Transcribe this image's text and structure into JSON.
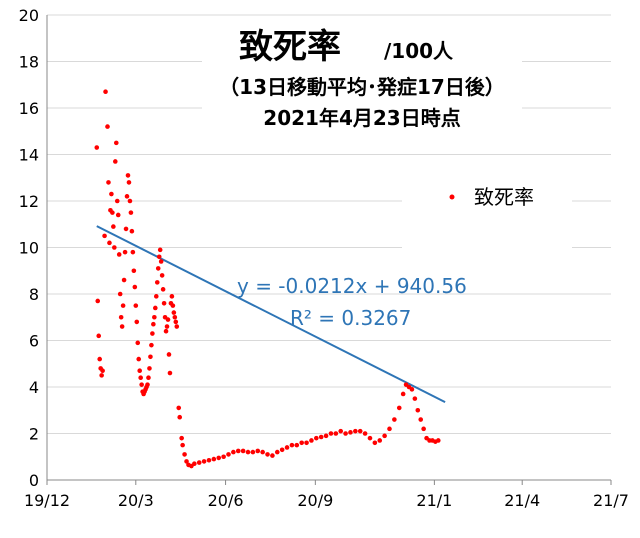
{
  "chart_data": {
    "type": "scatter",
    "title_main": "致死率",
    "title_unit": "/100人",
    "subtitle_1": "（13日移動平均･発症17日後）",
    "subtitle_2": "2021年4月23日時点",
    "ylim": [
      0,
      20
    ],
    "yticks": [
      0,
      2,
      4,
      6,
      8,
      10,
      12,
      14,
      16,
      18,
      20
    ],
    "xlim": [
      "2019-12-01",
      "2021-07-01"
    ],
    "xticks": [
      {
        "date": "2019-12-01",
        "label": "19/12"
      },
      {
        "date": "2020-03-01",
        "label": "20/3"
      },
      {
        "date": "2020-06-01",
        "label": "20/6"
      },
      {
        "date": "2020-09-01",
        "label": "20/9"
      },
      {
        "date": "2021-01-01",
        "label": "21/1"
      },
      {
        "date": "2021-04-01",
        "label": "21/4"
      },
      {
        "date": "2021-07-01",
        "label": "21/7"
      }
    ],
    "grid": "horizontal",
    "series": [
      {
        "name": "致死率",
        "color": "#ff0000",
        "points": [
          [
            "2020-01-21",
            14.3
          ],
          [
            "2020-01-22",
            7.7
          ],
          [
            "2020-01-23",
            6.2
          ],
          [
            "2020-01-24",
            5.2
          ],
          [
            "2020-01-25",
            4.8
          ],
          [
            "2020-01-26",
            4.5
          ],
          [
            "2020-01-27",
            4.7
          ],
          [
            "2020-01-29",
            10.5
          ],
          [
            "2020-01-30",
            16.7
          ],
          [
            "2020-02-01",
            15.2
          ],
          [
            "2020-02-02",
            12.8
          ],
          [
            "2020-02-03",
            10.2
          ],
          [
            "2020-02-04",
            11.6
          ],
          [
            "2020-02-05",
            12.3
          ],
          [
            "2020-02-06",
            11.5
          ],
          [
            "2020-02-07",
            10.9
          ],
          [
            "2020-02-08",
            10.0
          ],
          [
            "2020-02-09",
            13.7
          ],
          [
            "2020-02-10",
            14.5
          ],
          [
            "2020-02-11",
            12.0
          ],
          [
            "2020-02-12",
            11.4
          ],
          [
            "2020-02-13",
            9.7
          ],
          [
            "2020-02-14",
            8.0
          ],
          [
            "2020-02-15",
            7.0
          ],
          [
            "2020-02-16",
            6.6
          ],
          [
            "2020-02-17",
            7.5
          ],
          [
            "2020-02-18",
            8.6
          ],
          [
            "2020-02-19",
            9.8
          ],
          [
            "2020-02-20",
            10.8
          ],
          [
            "2020-02-21",
            12.2
          ],
          [
            "2020-02-22",
            13.1
          ],
          [
            "2020-02-23",
            12.8
          ],
          [
            "2020-02-24",
            12.0
          ],
          [
            "2020-02-25",
            11.5
          ],
          [
            "2020-02-26",
            10.7
          ],
          [
            "2020-02-27",
            9.8
          ],
          [
            "2020-02-28",
            9.0
          ],
          [
            "2020-02-29",
            8.3
          ],
          [
            "2020-03-01",
            7.5
          ],
          [
            "2020-03-02",
            6.8
          ],
          [
            "2020-03-03",
            5.9
          ],
          [
            "2020-03-04",
            5.2
          ],
          [
            "2020-03-05",
            4.7
          ],
          [
            "2020-03-06",
            4.4
          ],
          [
            "2020-03-07",
            4.1
          ],
          [
            "2020-03-08",
            3.8
          ],
          [
            "2020-03-09",
            3.7
          ],
          [
            "2020-03-10",
            3.8
          ],
          [
            "2020-03-11",
            3.9
          ],
          [
            "2020-03-12",
            4.0
          ],
          [
            "2020-03-13",
            4.1
          ],
          [
            "2020-03-14",
            4.4
          ],
          [
            "2020-03-15",
            4.8
          ],
          [
            "2020-03-16",
            5.3
          ],
          [
            "2020-03-17",
            5.8
          ],
          [
            "2020-03-18",
            6.3
          ],
          [
            "2020-03-19",
            6.7
          ],
          [
            "2020-03-20",
            7.0
          ],
          [
            "2020-03-21",
            7.4
          ],
          [
            "2020-03-22",
            7.9
          ],
          [
            "2020-03-23",
            8.5
          ],
          [
            "2020-03-24",
            9.1
          ],
          [
            "2020-03-25",
            9.6
          ],
          [
            "2020-03-26",
            9.9
          ],
          [
            "2020-03-27",
            9.4
          ],
          [
            "2020-03-28",
            8.8
          ],
          [
            "2020-03-29",
            8.2
          ],
          [
            "2020-03-30",
            7.6
          ],
          [
            "2020-03-31",
            7.0
          ],
          [
            "2020-04-01",
            6.4
          ],
          [
            "2020-04-02",
            6.6
          ],
          [
            "2020-04-03",
            6.9
          ],
          [
            "2020-04-04",
            5.4
          ],
          [
            "2020-04-05",
            4.6
          ],
          [
            "2020-04-06",
            7.6
          ],
          [
            "2020-04-07",
            7.9
          ],
          [
            "2020-04-08",
            7.5
          ],
          [
            "2020-04-09",
            7.2
          ],
          [
            "2020-04-10",
            7.0
          ],
          [
            "2020-04-11",
            6.8
          ],
          [
            "2020-04-12",
            6.6
          ],
          [
            "2020-04-14",
            3.1
          ],
          [
            "2020-04-15",
            2.7
          ],
          [
            "2020-04-17",
            1.8
          ],
          [
            "2020-04-18",
            1.5
          ],
          [
            "2020-04-20",
            1.1
          ],
          [
            "2020-04-22",
            0.8
          ],
          [
            "2020-04-24",
            0.65
          ],
          [
            "2020-04-27",
            0.6
          ],
          [
            "2020-04-30",
            0.7
          ],
          [
            "2020-05-05",
            0.75
          ],
          [
            "2020-05-10",
            0.8
          ],
          [
            "2020-05-15",
            0.85
          ],
          [
            "2020-05-20",
            0.9
          ],
          [
            "2020-05-25",
            0.95
          ],
          [
            "2020-05-30",
            1.0
          ],
          [
            "2020-06-04",
            1.1
          ],
          [
            "2020-06-09",
            1.2
          ],
          [
            "2020-06-14",
            1.25
          ],
          [
            "2020-06-19",
            1.25
          ],
          [
            "2020-06-24",
            1.2
          ],
          [
            "2020-06-29",
            1.2
          ],
          [
            "2020-07-04",
            1.25
          ],
          [
            "2020-07-09",
            1.2
          ],
          [
            "2020-07-14",
            1.1
          ],
          [
            "2020-07-19",
            1.05
          ],
          [
            "2020-07-24",
            1.2
          ],
          [
            "2020-07-29",
            1.3
          ],
          [
            "2020-08-03",
            1.4
          ],
          [
            "2020-08-08",
            1.5
          ],
          [
            "2020-08-13",
            1.5
          ],
          [
            "2020-08-18",
            1.6
          ],
          [
            "2020-08-23",
            1.6
          ],
          [
            "2020-08-28",
            1.7
          ],
          [
            "2020-09-02",
            1.8
          ],
          [
            "2020-09-07",
            1.85
          ],
          [
            "2020-09-12",
            1.9
          ],
          [
            "2020-09-17",
            2.0
          ],
          [
            "2020-09-22",
            2.0
          ],
          [
            "2020-09-27",
            2.1
          ],
          [
            "2020-10-02",
            2.0
          ],
          [
            "2020-10-07",
            2.05
          ],
          [
            "2020-10-12",
            2.1
          ],
          [
            "2020-10-17",
            2.1
          ],
          [
            "2020-10-22",
            2.0
          ],
          [
            "2020-10-27",
            1.8
          ],
          [
            "2020-11-01",
            1.6
          ],
          [
            "2020-11-06",
            1.7
          ],
          [
            "2020-11-11",
            1.9
          ],
          [
            "2020-11-16",
            2.2
          ],
          [
            "2020-11-21",
            2.6
          ],
          [
            "2020-11-26",
            3.1
          ],
          [
            "2020-11-30",
            3.7
          ],
          [
            "2020-12-03",
            4.1
          ],
          [
            "2020-12-06",
            4.0
          ],
          [
            "2020-12-09",
            3.9
          ],
          [
            "2020-12-12",
            3.5
          ],
          [
            "2020-12-15",
            3.0
          ],
          [
            "2020-12-18",
            2.6
          ],
          [
            "2020-12-21",
            2.2
          ],
          [
            "2020-12-24",
            1.8
          ],
          [
            "2020-12-27",
            1.7
          ],
          [
            "2020-12-30",
            1.7
          ],
          [
            "2021-01-02",
            1.65
          ],
          [
            "2021-01-05",
            1.7
          ]
        ]
      }
    ],
    "trendline": {
      "equation": "y = -0.0212x + 940.56",
      "r2": "R² = 0.3267",
      "from": "2020-01-21",
      "to": "2021-01-12",
      "color": "#2e75b6"
    },
    "legend": {
      "label": "致死率",
      "position": "right"
    }
  }
}
